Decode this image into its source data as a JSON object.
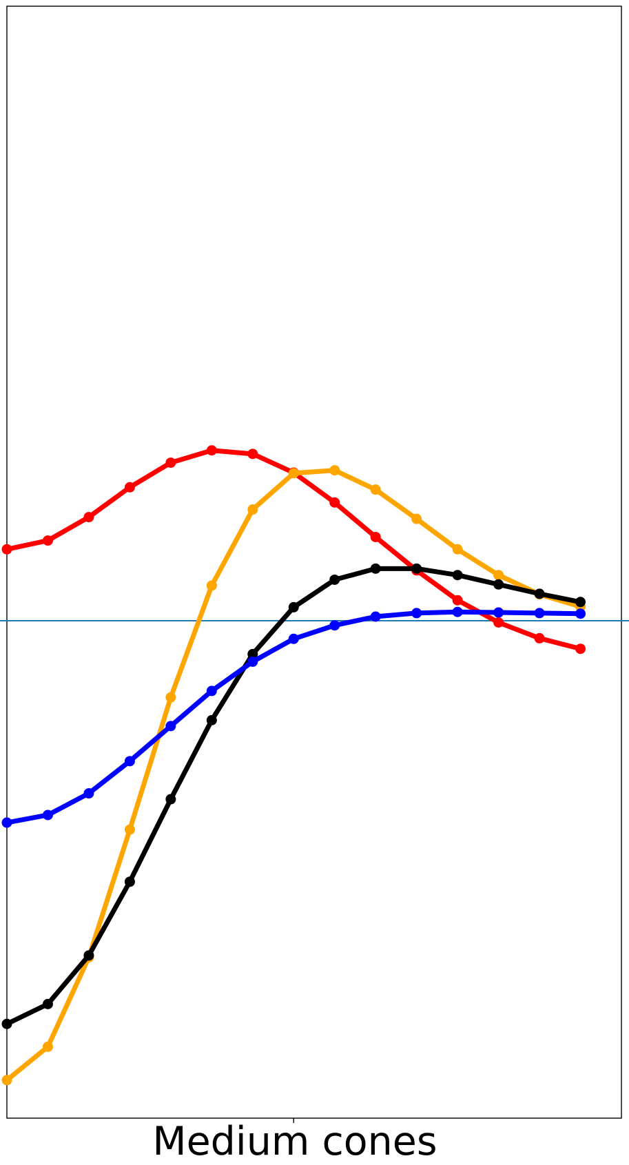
{
  "chart_data": {
    "type": "line",
    "xlabel": "Medium cones",
    "ylabel": "",
    "title": "",
    "x": [
      0,
      1,
      2,
      3,
      4,
      5,
      6,
      7,
      8,
      9,
      10,
      11,
      12,
      13,
      14
    ],
    "xlim": [
      0,
      15
    ],
    "ylim": [
      -850,
      1050
    ],
    "xticks": [
      7
    ],
    "yticks": [],
    "hline": {
      "y": 0,
      "color": "#1f77b4"
    },
    "grid": false,
    "legend": "none",
    "series": [
      {
        "color": "#ff0000",
        "values": [
          122,
          137,
          177,
          228,
          270,
          291,
          285,
          253,
          202,
          143,
          86,
          35,
          -3,
          -30,
          -48
        ]
      },
      {
        "color": "#ffa500",
        "values": [
          -785,
          -728,
          -575,
          -357,
          -131,
          60,
          190,
          252,
          257,
          224,
          174,
          122,
          78,
          45,
          24
        ]
      },
      {
        "color": "#000000",
        "values": [
          -689,
          -655,
          -572,
          -446,
          -305,
          -170,
          -57,
          23,
          70,
          89,
          89,
          78,
          62,
          46,
          32
        ]
      },
      {
        "color": "#0000ff",
        "values": [
          -345,
          -332,
          -295,
          -240,
          -180,
          -120,
          -70,
          -31,
          -8,
          7,
          13,
          15,
          14,
          13,
          12
        ]
      }
    ]
  }
}
